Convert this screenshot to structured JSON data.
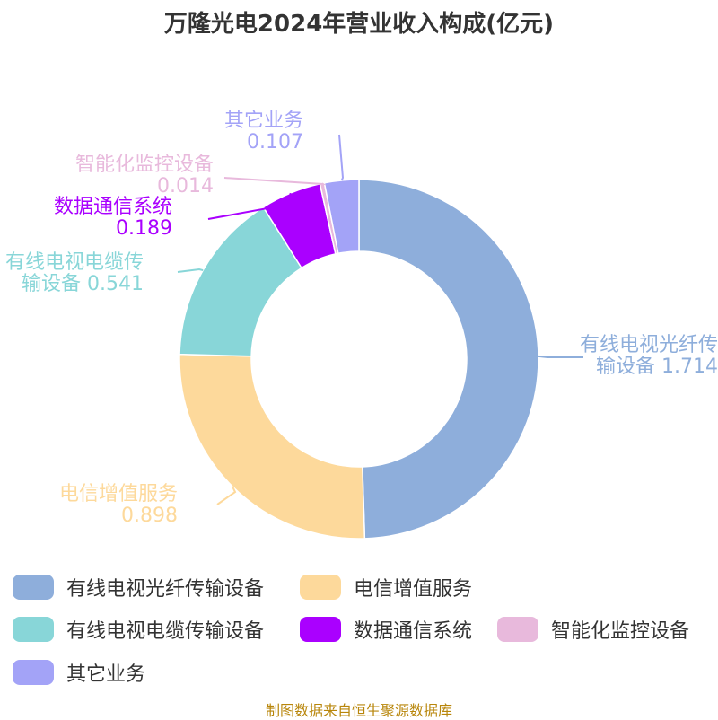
{
  "chart_data": {
    "type": "pie",
    "title": "万隆光电2024年营业收入构成(亿元)",
    "donut": true,
    "categories": [
      "有线电视光纤传输设备",
      "电信增值服务",
      "有线电视电缆传输设备",
      "数据通信系统",
      "智能化监控设备",
      "其它业务"
    ],
    "values": [
      1.714,
      0.898,
      0.541,
      0.189,
      0.014,
      0.107
    ],
    "value_labels": [
      "1.714",
      "0.898",
      "0.541",
      "0.189",
      "0.014",
      "0.107"
    ],
    "colors": [
      "#8eaedb",
      "#fdd99b",
      "#88d6d8",
      "#aa00ff",
      "#e8b9dc",
      "#a3a3f7"
    ],
    "label_lines": [
      [
        "有线电视光纤传",
        "输设备 1.714"
      ],
      [
        "电信增值服务",
        "0.898"
      ],
      [
        "有线电视电缆传",
        "输设备 0.541"
      ],
      [
        "数据通信系统",
        "0.189"
      ],
      [
        "智能化监控设备",
        "0.014"
      ],
      [
        "其它业务",
        "0.107"
      ]
    ],
    "legend_position": "bottom"
  },
  "source": "制图数据来自恒生聚源数据库"
}
